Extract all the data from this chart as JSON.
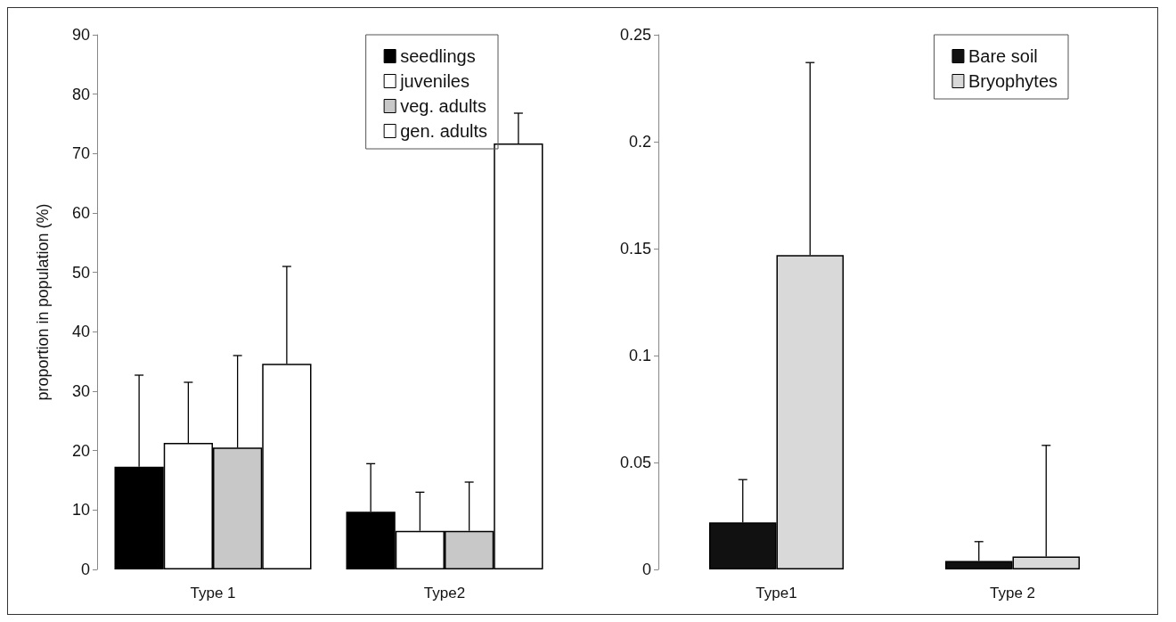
{
  "chart_data": [
    {
      "type": "bar",
      "ylabel": "proportion in population (%)",
      "categories": [
        "Type 1",
        "Type2"
      ],
      "series": [
        {
          "name": "seedlings",
          "color": "#000000",
          "values": [
            17.3,
            9.7
          ],
          "errors": [
            [
              17.3,
              32.7
            ],
            [
              9.7,
              17.8
            ]
          ]
        },
        {
          "name": "juveniles",
          "color": "#ffffff",
          "values": [
            21.3,
            6.5
          ],
          "errors": [
            [
              21.3,
              31.5
            ],
            [
              6.5,
              13.0
            ]
          ]
        },
        {
          "name": "veg. adults",
          "color": "#c8c8c8",
          "values": [
            20.5,
            6.5
          ],
          "errors": [
            [
              20.5,
              36.0
            ],
            [
              6.5,
              14.7
            ]
          ]
        },
        {
          "name": "gen. adults",
          "color": "#ffffff",
          "values": [
            34.6,
            71.7
          ],
          "errors": [
            [
              34.6,
              51.0
            ],
            [
              71.7,
              76.8
            ]
          ]
        }
      ],
      "ylim": [
        0,
        90
      ],
      "yticks": [
        0,
        10,
        20,
        30,
        40,
        50,
        60,
        70,
        80,
        90
      ],
      "grid": false,
      "legend": "top right"
    },
    {
      "type": "bar",
      "categories": [
        "Type1",
        "Type 2"
      ],
      "series": [
        {
          "name": "Bare soil",
          "color": "#111111",
          "values": [
            0.022,
            0.004
          ],
          "errors": [
            [
              0.022,
              0.042
            ],
            [
              0.004,
              0.013
            ]
          ]
        },
        {
          "name": "Bryophytes",
          "color": "#d9d9d9",
          "values": [
            0.147,
            0.006
          ],
          "errors": [
            [
              0.147,
              0.237
            ],
            [
              0.006,
              0.058
            ]
          ]
        }
      ],
      "ylim": [
        0,
        0.25
      ],
      "yticks": [
        0,
        0.05,
        0.1,
        0.15,
        0.2,
        0.25
      ],
      "grid": false,
      "legend": "top right"
    }
  ]
}
